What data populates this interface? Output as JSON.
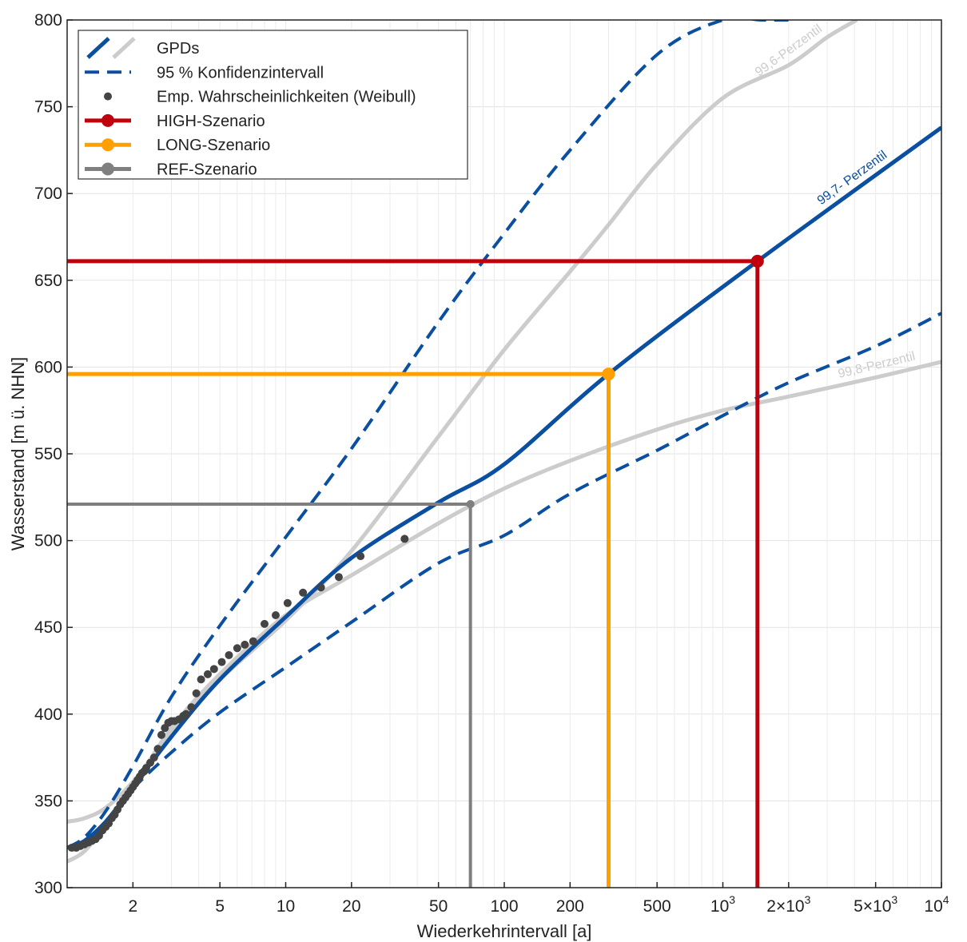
{
  "chart_data": {
    "type": "line",
    "title": "",
    "xlabel": "Wiederkehrintervall [a]",
    "ylabel": "Wasserstand [m ü. NHN]",
    "xscale": "log",
    "xlim": [
      1,
      10000
    ],
    "ylim": [
      300,
      800
    ],
    "grid": true,
    "legend_position": "top-left",
    "x_ticks": [
      {
        "value": 2,
        "label": "2",
        "exp": ""
      },
      {
        "value": 5,
        "label": "5",
        "exp": ""
      },
      {
        "value": 10,
        "label": "10",
        "exp": ""
      },
      {
        "value": 20,
        "label": "20",
        "exp": ""
      },
      {
        "value": 50,
        "label": "50",
        "exp": ""
      },
      {
        "value": 100,
        "label": "100",
        "exp": ""
      },
      {
        "value": 200,
        "label": "200",
        "exp": ""
      },
      {
        "value": 500,
        "label": "500",
        "exp": ""
      },
      {
        "value": 1000,
        "label": "10",
        "exp": "3"
      },
      {
        "value": 2000,
        "label": "2×10",
        "exp": "3"
      },
      {
        "value": 5000,
        "label": "5×10",
        "exp": "3"
      },
      {
        "value": 10000,
        "label": "10",
        "exp": "4"
      }
    ],
    "y_ticks": [
      300,
      350,
      400,
      450,
      500,
      550,
      600,
      650,
      700,
      750,
      800
    ],
    "legend": [
      {
        "label": "GPDs",
        "kind": "gpds"
      },
      {
        "label": "95 % Konfidenzintervall",
        "kind": "dashed",
        "color": "#0a4fa0"
      },
      {
        "label": "Emp. Wahrscheinlichkeiten (Weibull)",
        "kind": "dot",
        "color": "#444444"
      },
      {
        "label": "HIGH-Szenario",
        "kind": "line-dot",
        "color": "#c0000c"
      },
      {
        "label": "LONG-Szenario",
        "kind": "line-dot",
        "color": "#ff9f00"
      },
      {
        "label": "REF-Szenario",
        "kind": "line-dot",
        "color": "#7f7f7f"
      }
    ],
    "series": [
      {
        "id": "gpd-99-7",
        "legend": "GPDs",
        "style": "solid",
        "color": "#0a4fa0",
        "width": 5,
        "x": [
          1.0,
          1.2,
          1.5,
          2,
          3,
          5,
          10,
          20,
          50,
          100,
          200,
          300,
          500,
          1000,
          1440,
          2000,
          5000,
          10000
        ],
        "y": [
          323,
          327,
          338,
          358,
          387,
          420,
          458,
          497,
          545,
          582,
          618,
          597,
          620,
          645,
          661,
          673,
          706,
          738
        ]
      },
      {
        "id": "gpd-99-6",
        "legend": "GPDs",
        "style": "solid",
        "color": "#cccccc",
        "width": 5,
        "x": [
          1.0,
          1.2,
          1.5,
          2,
          3,
          5,
          10,
          20,
          50,
          100,
          200,
          300,
          500,
          1000,
          2000,
          3000,
          4100
        ],
        "y": [
          338,
          340,
          346,
          361,
          389,
          420,
          454,
          494,
          560,
          610,
          655,
          682,
          717,
          755,
          774,
          790,
          800
        ]
      },
      {
        "id": "gpd-99-8",
        "legend": "GPDs",
        "style": "solid",
        "color": "#cccccc",
        "width": 5,
        "x": [
          1.0,
          1.2,
          1.5,
          2,
          3,
          5,
          10,
          20,
          50,
          100,
          200,
          500,
          1000,
          2000,
          5000,
          10000
        ],
        "y": [
          315,
          321,
          336,
          358,
          392,
          423,
          457,
          480,
          510,
          530,
          546,
          564,
          575,
          583,
          594,
          603
        ]
      },
      {
        "id": "ci-upper",
        "legend": "95 % Konfidenzintervall",
        "style": "dashed",
        "color": "#0a4fa0",
        "width": 4,
        "x": [
          1.0,
          1.2,
          1.5,
          2,
          3,
          5,
          10,
          20,
          50,
          100,
          200,
          500,
          1000,
          1500,
          2000
        ],
        "y": [
          323,
          329,
          344,
          370,
          410,
          451,
          502,
          553,
          626,
          677,
          725,
          780,
          800,
          800,
          800
        ]
      },
      {
        "id": "ci-lower",
        "legend": "95 % Konfidenzintervall",
        "style": "dashed",
        "color": "#0a4fa0",
        "width": 4,
        "x": [
          1.0,
          1.2,
          1.5,
          2,
          3,
          5,
          10,
          20,
          50,
          100,
          200,
          500,
          1000,
          2000,
          5000,
          10000
        ],
        "y": [
          323,
          328,
          337,
          357,
          378,
          401,
          427,
          453,
          487,
          503,
          527,
          552,
          572,
          591,
          612,
          631
        ]
      }
    ],
    "empirical_points": {
      "x": [
        1.05,
        1.1,
        1.15,
        1.2,
        1.25,
        1.3,
        1.35,
        1.4,
        1.45,
        1.5,
        1.55,
        1.6,
        1.65,
        1.7,
        1.75,
        1.8,
        1.85,
        1.9,
        1.95,
        2.0,
        2.05,
        2.1,
        2.15,
        2.2,
        2.25,
        2.3,
        2.4,
        2.5,
        2.6,
        2.7,
        2.8,
        2.9,
        3.0,
        3.1,
        3.25,
        3.4,
        3.5,
        3.7,
        3.9,
        4.1,
        4.4,
        4.7,
        5.1,
        5.5,
        6.0,
        6.5,
        7.1,
        8.0,
        9.0,
        10.2,
        12.0,
        14.5,
        17.5,
        22,
        35,
        70
      ],
      "y": [
        323,
        323,
        324,
        325,
        326,
        327,
        328,
        330,
        333,
        335,
        337,
        340,
        342,
        345,
        348,
        350,
        352,
        354,
        356,
        358,
        360,
        362,
        364,
        366,
        367,
        369,
        372,
        375,
        380,
        388,
        392,
        395,
        396,
        396,
        397,
        399,
        400,
        404,
        412,
        420,
        423,
        426,
        430,
        434,
        438,
        440,
        442,
        452,
        457,
        464,
        470,
        473,
        479,
        491,
        501,
        521
      ]
    },
    "scenarios": [
      {
        "name": "HIGH-Szenario",
        "color": "#c0000c",
        "x": 1440,
        "y": 661
      },
      {
        "name": "LONG-Szenario",
        "color": "#ff9f00",
        "x": 300,
        "y": 596
      },
      {
        "name": "REF-Szenario",
        "color": "#7f7f7f",
        "x": 70,
        "y": 521
      }
    ],
    "curve_labels": [
      {
        "text": "99,6-Perzentil",
        "color": "#cccccc",
        "at_series": "gpd-99-6",
        "x": 2150,
        "y_offset": 0
      },
      {
        "text": "99,7- Perzentil",
        "color": "#0a4fa0",
        "at_series": "gpd-99-7",
        "x": 4200,
        "y_offset": 0
      },
      {
        "text": "99,8-Perzentil",
        "color": "#cccccc",
        "at_series": "gpd-99-8",
        "x": 5200,
        "y_offset": 0
      }
    ]
  }
}
